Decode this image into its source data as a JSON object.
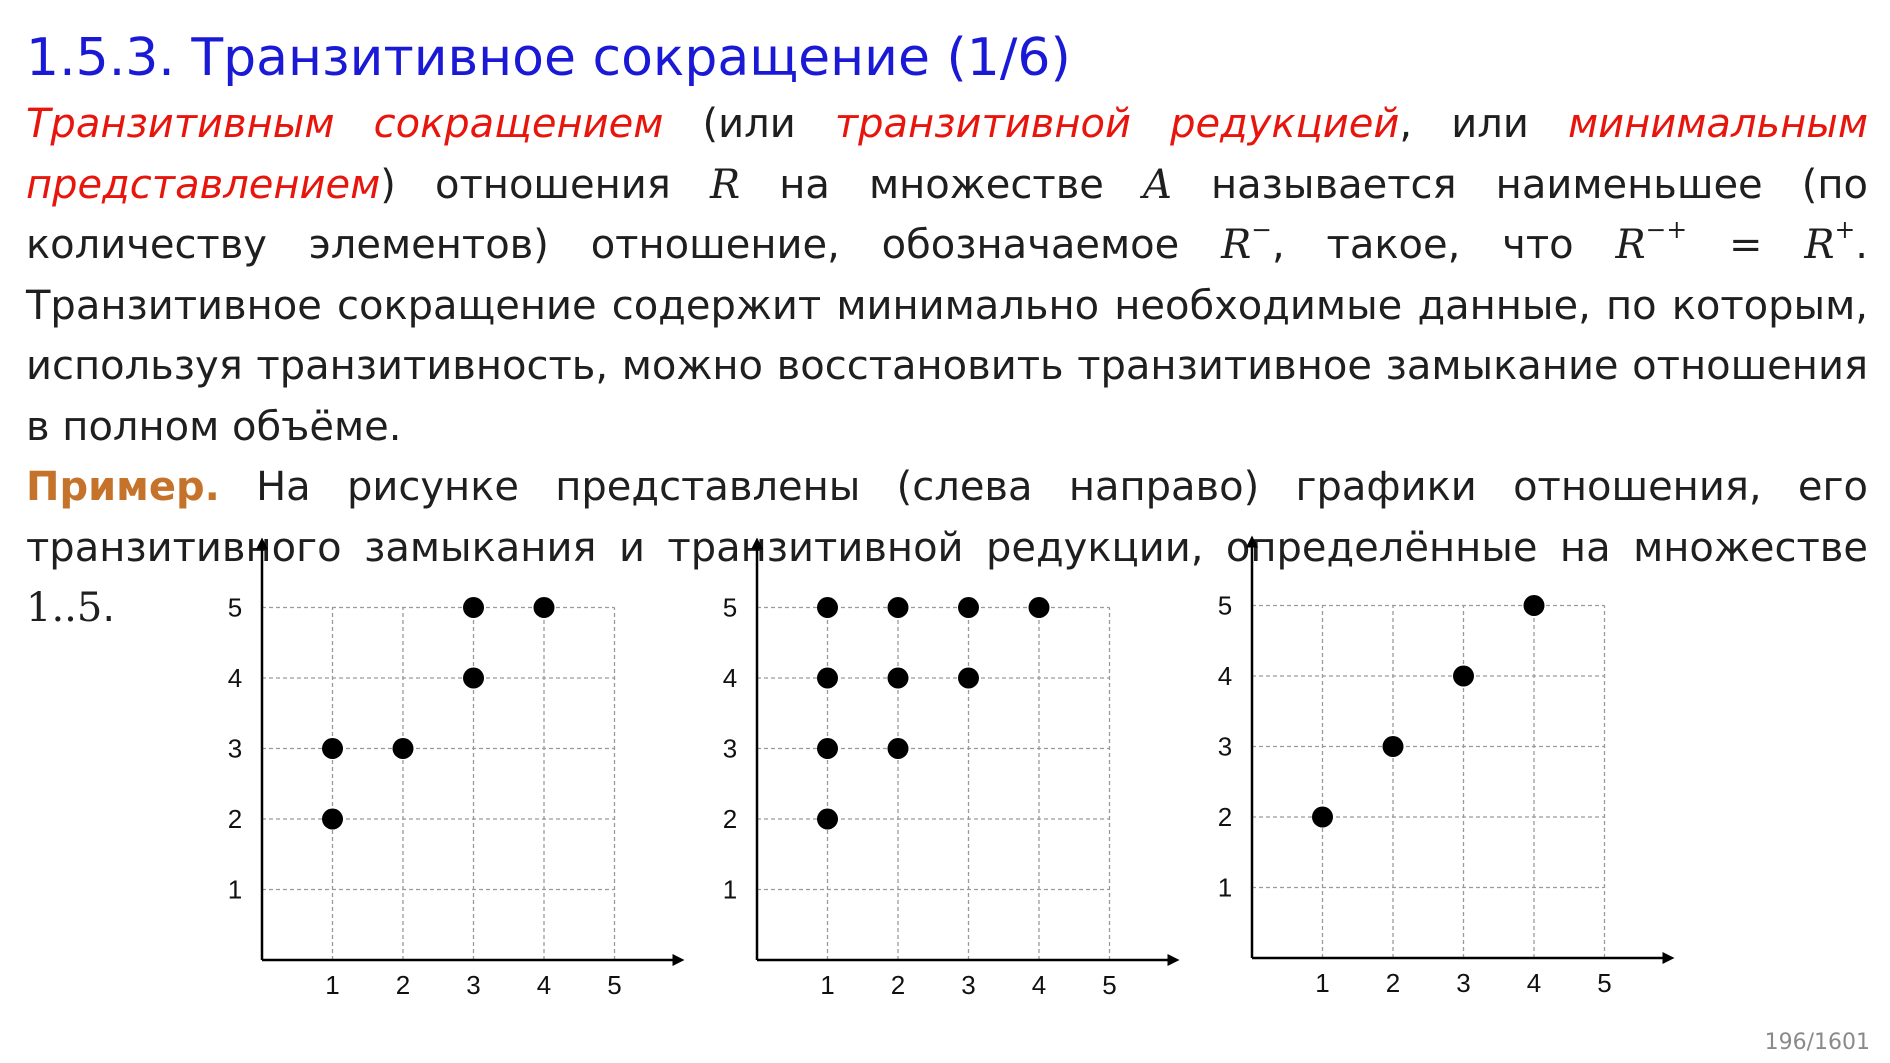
{
  "slide": {
    "title": "1.5.3. Транзитивное сокращение (1/6)",
    "page_number": "196/1601"
  },
  "definition": {
    "term1": "Транзитивным сокращением",
    "t1": " (или ",
    "term2": "транзитивной редукцией",
    "t2": ", или ",
    "term3": "минимальным представлением",
    "t3": ") отношения ",
    "m_R": "R",
    "t4": " на множестве ",
    "m_A": "A",
    "t5": " называется наименьшее (по количеству элементов) отношение, обозначаемое ",
    "m_Rminus_base": "R",
    "m_Rminus_sup": "−",
    "t6": ", такое, что ",
    "m_eq_base": "R",
    "m_eq_sup": "−+",
    "m_eq_sign": " = ",
    "m_Rplus_base": "R",
    "m_Rplus_sup": "+",
    "t7": ". Транзитивное сокращение содержит минимально необходимые данные, по которым, используя транзитивность, можно восстановить транзитивное замыкание отношения в полном объёме."
  },
  "example": {
    "label": "Пример.",
    "text": " На рисунке представлены (слева направо) графики отношения, его транзитивного замыкания и транзитивной редукции, определённые на множестве ",
    "set": "1..5",
    "end": "."
  },
  "chart_data": [
    {
      "type": "scatter",
      "xlim": [
        0,
        5
      ],
      "ylim": [
        0,
        5
      ],
      "x_ticks": [
        "1",
        "2",
        "3",
        "4",
        "5"
      ],
      "y_ticks": [
        "1",
        "2",
        "3",
        "4",
        "5"
      ],
      "grid": true,
      "points": [
        [
          1,
          2
        ],
        [
          1,
          3
        ],
        [
          2,
          3
        ],
        [
          3,
          4
        ],
        [
          3,
          5
        ],
        [
          4,
          5
        ]
      ]
    },
    {
      "type": "scatter",
      "xlim": [
        0,
        5
      ],
      "ylim": [
        0,
        5
      ],
      "x_ticks": [
        "1",
        "2",
        "3",
        "4",
        "5"
      ],
      "y_ticks": [
        "1",
        "2",
        "3",
        "4",
        "5"
      ],
      "grid": true,
      "points": [
        [
          1,
          2
        ],
        [
          1,
          3
        ],
        [
          1,
          4
        ],
        [
          1,
          5
        ],
        [
          2,
          3
        ],
        [
          2,
          4
        ],
        [
          2,
          5
        ],
        [
          3,
          4
        ],
        [
          3,
          5
        ],
        [
          4,
          5
        ]
      ]
    },
    {
      "type": "scatter",
      "xlim": [
        0,
        5
      ],
      "ylim": [
        0,
        5
      ],
      "x_ticks": [
        "1",
        "2",
        "3",
        "4",
        "5"
      ],
      "y_ticks": [
        "1",
        "2",
        "3",
        "4",
        "5"
      ],
      "grid": true,
      "points": [
        [
          1,
          2
        ],
        [
          2,
          3
        ],
        [
          3,
          4
        ],
        [
          4,
          5
        ]
      ]
    }
  ]
}
